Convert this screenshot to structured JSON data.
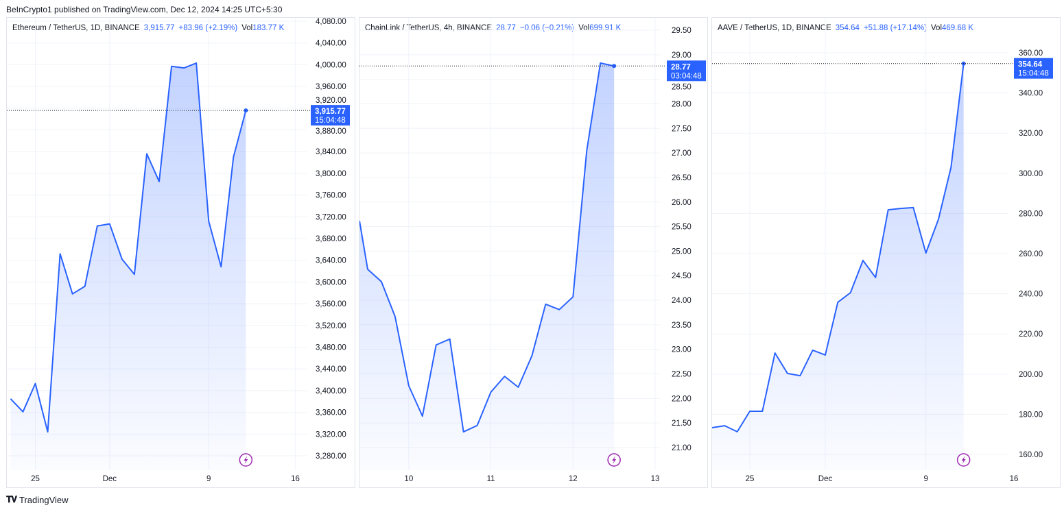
{
  "published": "BeInCrypto1 published on TradingView.com, Dec 12, 2024 14:25 UTC+5:30",
  "footer": {
    "brand": "TradingView"
  },
  "colors": {
    "line": "#2962ff",
    "label_bg": "#2962ff",
    "grid": "#f0f3fa",
    "event": "#9c27b0"
  },
  "chart_data": [
    {
      "type": "area",
      "title": "Ethereum / TetherUS, 1D, BINANCE",
      "last": "3,915.77",
      "change": "+83.96 (+2.19%)",
      "vol_label": "Vol",
      "vol": "183.77 K",
      "price_label": "3,915.77",
      "countdown": "15:04:48",
      "x_unit": "days since Nov 23",
      "x": [
        0,
        1,
        2,
        3,
        4,
        5,
        6,
        7,
        8,
        9,
        10,
        11,
        12,
        13,
        14,
        15,
        16,
        17,
        18,
        19
      ],
      "values": [
        3385,
        3361,
        3413,
        3324,
        3652,
        3578,
        3592,
        3703,
        3707,
        3642,
        3614,
        3836,
        3785,
        3997,
        3994,
        4003,
        3712,
        3628,
        3830,
        3915.77
      ],
      "xlim": [
        -0.3,
        23.8
      ],
      "ylim": [
        3260,
        4092
      ],
      "yticks": [
        4080,
        4040,
        4000,
        3960,
        3920,
        3880,
        3840,
        3800,
        3760,
        3720,
        3680,
        3640,
        3600,
        3560,
        3520,
        3480,
        3440,
        3400,
        3360,
        3320,
        3280
      ],
      "ytick_labels": [
        "4,080.00",
        "4,040.00",
        "4,000.00",
        "3,960.00",
        "3,920.00",
        "3,880.00",
        "3,840.00",
        "3,800.00",
        "3,760.00",
        "3,720.00",
        "3,680.00",
        "3,640.00",
        "3,600.00",
        "3,560.00",
        "3,520.00",
        "3,480.00",
        "3,440.00",
        "3,400.00",
        "3,360.00",
        "3,320.00",
        "3,280.00"
      ],
      "xticks": [
        2,
        8,
        16,
        23
      ],
      "xtick_labels": [
        "25",
        "Dec",
        "9",
        "16"
      ]
    },
    {
      "type": "area",
      "title": "ChainLink / TetherUS, 4h, BINANCE",
      "last": "28.77",
      "change": "−0.06 (−0.21%)",
      "vol_label": "Vol",
      "vol": "699.91 K",
      "price_label": "28.77",
      "countdown": "03:04:48",
      "x_unit": "4h bars since Dec 10 00:00",
      "x": [
        -3.6,
        -3,
        -2,
        -1,
        0,
        1,
        2,
        3,
        4,
        5,
        6,
        7,
        8,
        9,
        10,
        11,
        12,
        13,
        14,
        15
      ],
      "values": [
        25.62,
        24.63,
        24.38,
        23.67,
        22.26,
        21.64,
        23.09,
        23.21,
        21.32,
        21.45,
        22.13,
        22.45,
        22.23,
        22.87,
        23.92,
        23.81,
        24.07,
        27.04,
        28.83,
        28.77
      ],
      "xlim": [
        -3.6,
        18.3
      ],
      "ylim": [
        20.75,
        29.75
      ],
      "yticks": [
        29.5,
        29,
        28.5,
        28,
        27.5,
        27,
        26.5,
        26,
        25.5,
        25,
        24.5,
        24,
        23.5,
        23,
        22.5,
        22,
        21.5,
        21
      ],
      "ytick_labels": [
        "29.50",
        "29.00",
        "28.50",
        "28.00",
        "27.50",
        "27.00",
        "26.50",
        "26.00",
        "25.50",
        "25.00",
        "24.50",
        "24.00",
        "23.50",
        "23.00",
        "22.50",
        "22.00",
        "21.50",
        "21.00"
      ],
      "xticks": [
        0,
        6,
        12,
        18
      ],
      "xtick_labels": [
        "10",
        "11",
        "12",
        "13"
      ]
    },
    {
      "type": "area",
      "title": "AAVE / TetherUS, 1D, BINANCE",
      "last": "354.64",
      "change": "+51.88 (+17.14%)",
      "vol_label": "Vol",
      "vol": "469.68 K",
      "price_label": "354.64",
      "countdown": "15:04:48",
      "x_unit": "days since Nov 22",
      "x": [
        0,
        1,
        2,
        3,
        4,
        5,
        6,
        7,
        8,
        9,
        10,
        11,
        12,
        13,
        14,
        15,
        16,
        17,
        18,
        19,
        20
      ],
      "values": [
        173.3,
        174.3,
        171.3,
        181.5,
        181.5,
        210.5,
        200.3,
        199.2,
        211.9,
        209.5,
        235.8,
        240.5,
        256.6,
        248.1,
        281.8,
        282.5,
        282.9,
        260.3,
        277.1,
        303.0,
        354.64
      ],
      "xlim": [
        0,
        24
      ],
      "ylim": [
        155,
        366
      ],
      "yticks": [
        360,
        340,
        320,
        300,
        280,
        260,
        240,
        220,
        200,
        180,
        160
      ],
      "ytick_labels": [
        "360.00",
        "340.00",
        "320.00",
        "300.00",
        "280.00",
        "260.00",
        "240.00",
        "220.00",
        "200.00",
        "180.00",
        "160.00"
      ],
      "xticks": [
        3,
        9,
        17,
        24
      ],
      "xtick_labels": [
        "25",
        "Dec",
        "9",
        "16"
      ]
    }
  ]
}
